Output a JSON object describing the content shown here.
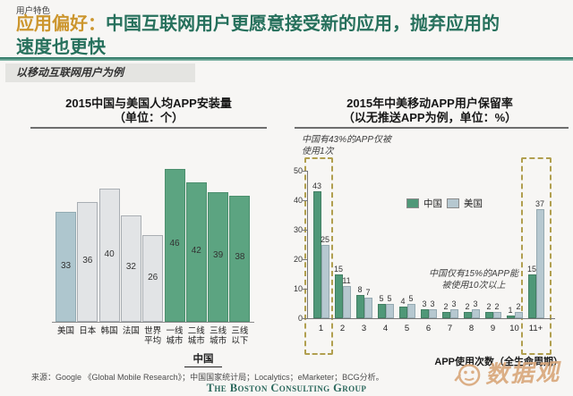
{
  "header": {
    "eyebrow": "用户特色",
    "title_highlight": "应用偏好：",
    "title_line1": "中国互联网用户更愿意接受新的应用，抛弃应用的",
    "title_line2": "速度也更快",
    "subtitle_tag": "以移动互联网用户为例"
  },
  "colors": {
    "accent_orange": "#cc962e",
    "brand_green": "#26705c",
    "china_green_left": "#5ca481",
    "china_green_left_border": "#4c8f6e",
    "neutral_gray": "#e2e4e6",
    "neutral_gray_border": "#a9aeb3",
    "us_blue_left": "#aec6ce",
    "us_blue_left_border": "#93abb3",
    "highlight_dash": "#b19f4f",
    "watermark_tan": "#d9a87c"
  },
  "chart_data": [
    {
      "type": "bar",
      "title": "2015中国与美国人均APP安装量",
      "subtitle": "（单位：个）",
      "categories": [
        "美国",
        "日本",
        "韩国",
        "法国",
        "世界\n平均",
        "一线\n城市",
        "二线\n城市",
        "三线\n城市",
        "三线\n以下"
      ],
      "values": [
        33,
        36,
        40,
        32,
        26,
        46,
        42,
        39,
        38
      ],
      "bar_styles": [
        "us",
        "gray",
        "gray",
        "gray",
        "gray",
        "china",
        "china",
        "china",
        "china"
      ],
      "group_label": "中国",
      "grid": "off",
      "value_labels": "inside"
    },
    {
      "type": "grouped-bar",
      "title": "2015年中美移动APP用户保留率",
      "subtitle": "（以无推送APP为例，单位：%）",
      "categories": [
        "1",
        "2",
        "3",
        "4",
        "5",
        "6",
        "7",
        "8",
        "9",
        "10",
        "11+"
      ],
      "series": [
        {
          "name": "中国",
          "color": "#4f9878",
          "border": "#427f63",
          "values": [
            43,
            15,
            8,
            5,
            4,
            3,
            2,
            2,
            2,
            1,
            15
          ]
        },
        {
          "name": "美国",
          "color": "#b6c8d0",
          "border": "#95a9b1",
          "values": [
            25,
            11,
            7,
            5,
            5,
            3,
            3,
            3,
            2,
            2,
            37
          ]
        }
      ],
      "yticks": [
        0,
        10,
        20,
        30,
        40,
        50
      ],
      "ylim": [
        0,
        50
      ],
      "xlabel": "APP使用次数（全生命周期）",
      "legend_position": "center",
      "annotations": [
        "中国有43%的APP仅被\n使用1次",
        "中国仅有15%的APP能\n被使用10次以上"
      ],
      "highlight_groups": [
        "1",
        "11+"
      ]
    }
  ],
  "footer": {
    "source": "来源：Google 《Global Mobile Research》；中国国家统计局；Localytics；eMarketer；BCG分析。",
    "brand": "The Boston Consulting Group",
    "watermark": "数据观"
  }
}
